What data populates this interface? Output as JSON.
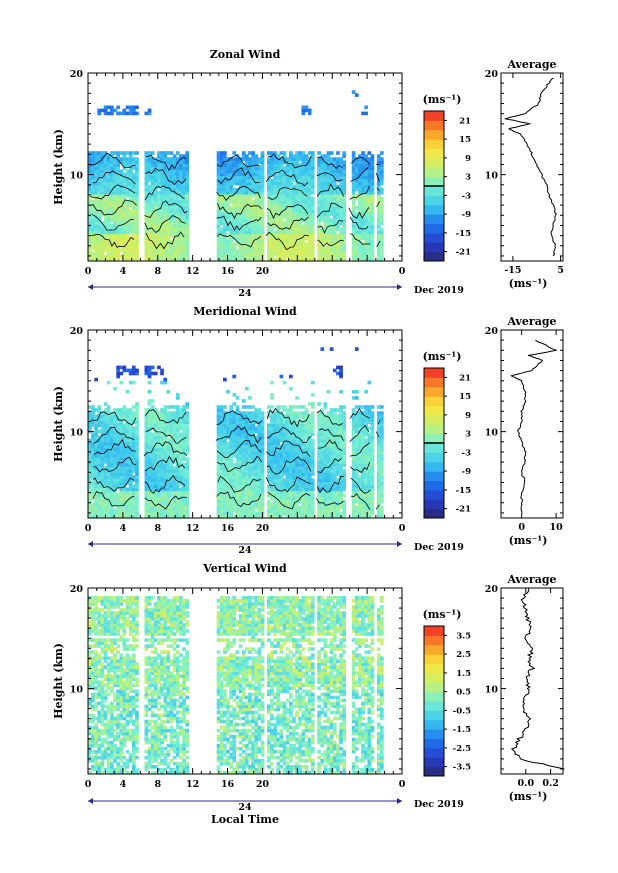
{
  "chart_data": [
    {
      "type": "heatmap",
      "title": "Zonal Wind",
      "ylabel": "Height (km)",
      "xlim": [
        0,
        36
      ],
      "ylim": [
        1.5,
        20
      ],
      "xticks": [
        "0",
        "4",
        "8",
        "12",
        "16",
        "20",
        "0"
      ],
      "yticks": [
        "10",
        "20"
      ],
      "date_axis": {
        "day": "24",
        "month_year": "Dec 2019"
      },
      "colorbar": {
        "unit": "(ms⁻¹)",
        "ticks": [
          "21",
          "15",
          "9",
          "3",
          "-3",
          "-9",
          "-15",
          "-21"
        ],
        "range": [
          -24,
          24
        ]
      },
      "contour_level": 0,
      "profile": {
        "title": "Average",
        "xticks": [
          "-15",
          "5"
        ],
        "xlim": [
          -20,
          6
        ],
        "yticks": [
          "10",
          "20"
        ],
        "xunit": "(ms⁻¹)",
        "heights": [
          2,
          3,
          4,
          5,
          6,
          7,
          8,
          9,
          10,
          11,
          12,
          13,
          14,
          14.5,
          15,
          15.5,
          16,
          17,
          18,
          19,
          19.5
        ],
        "values": [
          2,
          3,
          1,
          2,
          3,
          2,
          0,
          -1,
          -3,
          -5,
          -7,
          -9,
          -12,
          -17,
          -8,
          -18,
          -10,
          -4,
          -3,
          0,
          2
        ]
      }
    },
    {
      "type": "heatmap",
      "title": "Meridional Wind",
      "ylabel": "Height (km)",
      "xlim": [
        0,
        36
      ],
      "ylim": [
        1.5,
        20
      ],
      "xticks": [
        "0",
        "4",
        "8",
        "12",
        "16",
        "20",
        "0"
      ],
      "yticks": [
        "10",
        "20"
      ],
      "date_axis": {
        "day": "24",
        "month_year": "Dec 2019"
      },
      "colorbar": {
        "unit": "(ms⁻¹)",
        "ticks": [
          "21",
          "15",
          "9",
          "3",
          "-3",
          "-9",
          "-15",
          "-21"
        ],
        "range": [
          -24,
          24
        ]
      },
      "contour_level": 0,
      "profile": {
        "title": "Average",
        "xticks": [
          "0",
          "10"
        ],
        "xlim": [
          -6,
          12
        ],
        "yticks": [
          "10",
          "20"
        ],
        "xunit": "(ms⁻¹)",
        "heights": [
          2,
          3,
          4,
          5,
          6,
          7,
          8,
          9,
          10,
          11,
          12,
          13,
          14,
          15,
          15.5,
          16,
          17,
          17.5,
          18,
          19
        ],
        "values": [
          0,
          0,
          0,
          1,
          0,
          1,
          1,
          0,
          -1,
          0,
          0,
          1,
          1,
          0,
          -3,
          3,
          6,
          2,
          10,
          4
        ]
      }
    },
    {
      "type": "heatmap",
      "title": "Vertical Wind",
      "ylabel": "Height (km)",
      "xlabel": "Local Time",
      "xlim": [
        0,
        36
      ],
      "ylim": [
        1.5,
        20
      ],
      "xticks": [
        "0",
        "4",
        "8",
        "12",
        "16",
        "20",
        "0"
      ],
      "yticks": [
        "10",
        "20"
      ],
      "date_axis": {
        "day": "24",
        "month_year": "Dec 2019"
      },
      "colorbar": {
        "unit": "(ms⁻¹)",
        "ticks": [
          "3.5",
          "2.5",
          "1.5",
          "0.5",
          "-0.5",
          "-1.5",
          "-2.5",
          "-3.5"
        ],
        "range": [
          -4,
          4
        ]
      },
      "profile": {
        "title": "Average",
        "xticks": [
          "0.0",
          "0.2"
        ],
        "xlim": [
          -0.2,
          0.3
        ],
        "yticks": [
          "10",
          "20"
        ],
        "xunit": "(ms⁻¹)",
        "heights": [
          2,
          3,
          4,
          5,
          6,
          7,
          8,
          9,
          10,
          11,
          12,
          13,
          14,
          15,
          16,
          17,
          18,
          19,
          20
        ],
        "values": [
          0.3,
          -0.05,
          -0.1,
          -0.05,
          0,
          0.02,
          -0.02,
          0,
          0.03,
          0,
          0.05,
          0.02,
          0.06,
          0,
          0.04,
          0.02,
          0,
          -0.02,
          0.02
        ]
      }
    }
  ]
}
